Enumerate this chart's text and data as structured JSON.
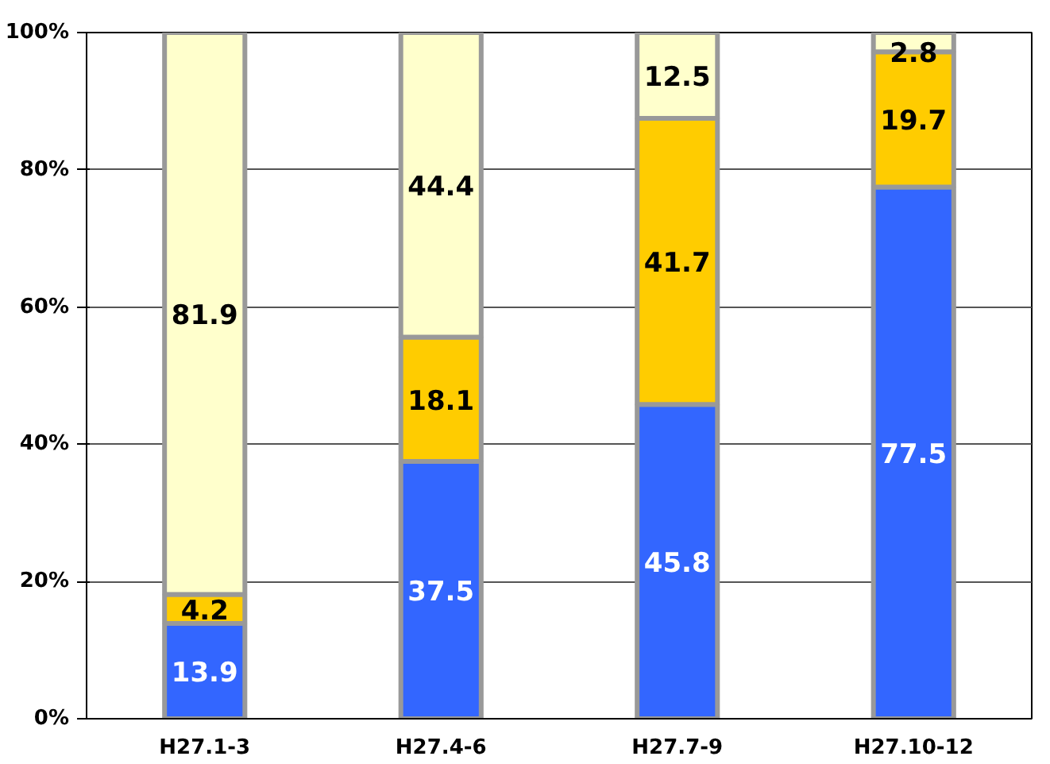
{
  "chart_data": {
    "type": "bar",
    "stacked": true,
    "categories": [
      "H27.1-3",
      "H27.4-6",
      "H27.7-9",
      "H27.10-12"
    ],
    "series": [
      {
        "color": "#3366ff",
        "values": [
          13.9,
          37.5,
          45.8,
          77.5
        ]
      },
      {
        "color": "#ffcc00",
        "values": [
          4.2,
          18.1,
          41.7,
          19.7
        ]
      },
      {
        "color": "#ffffcc",
        "values": [
          81.9,
          44.4,
          12.5,
          2.8
        ]
      }
    ],
    "ylim": [
      0,
      100
    ],
    "yticks": [
      {
        "value": 0,
        "label": "0%"
      },
      {
        "value": 20,
        "label": "20%"
      },
      {
        "value": 40,
        "label": "40%"
      },
      {
        "value": 60,
        "label": "60%"
      },
      {
        "value": 80,
        "label": "80%"
      },
      {
        "value": 100,
        "label": "100%"
      }
    ],
    "grid": "y",
    "data_labels": true
  }
}
